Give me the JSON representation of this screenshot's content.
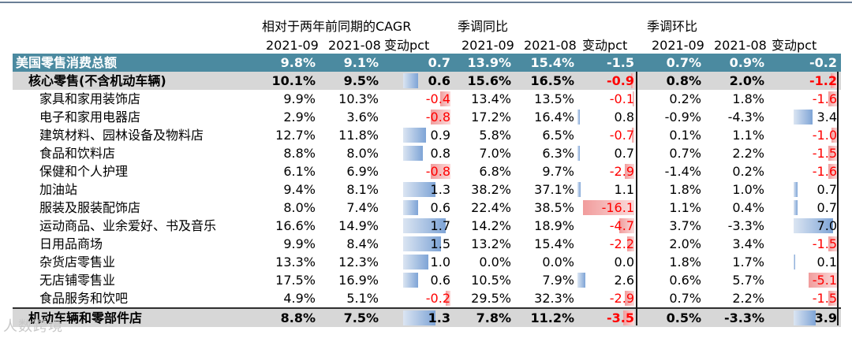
{
  "header": {
    "groups": [
      "相对于两年前同期的CAGR",
      "季调同比",
      "季调环比"
    ],
    "subheaders": [
      "2021-09",
      "2021-08",
      "变动pct",
      "2021-09",
      "2021-08",
      "变动pct",
      "2021-09",
      "2021-08",
      "变动pct"
    ]
  },
  "rows": [
    {
      "label": "美国零售消费总额",
      "type": "total",
      "values": [
        "9.8%",
        "9.1%",
        "0.7",
        "13.9%",
        "15.4%",
        "-1.5",
        "0.7%",
        "0.9%",
        "-0.2"
      ],
      "changes": [
        0.7,
        -1.5,
        -0.2
      ]
    },
    {
      "label": "核心零售(不含机动车辆)",
      "type": "band",
      "values": [
        "10.1%",
        "9.5%",
        "0.6",
        "15.6%",
        "16.5%",
        "-0.9",
        "0.8%",
        "2.0%",
        "-1.2"
      ],
      "changes": [
        0.6,
        -0.9,
        -1.2
      ]
    },
    {
      "label": "家具和家用装饰店",
      "type": "item",
      "values": [
        "9.9%",
        "10.3%",
        "-0.4",
        "13.4%",
        "13.5%",
        "-0.1",
        "0.2%",
        "1.8%",
        "-1.6"
      ],
      "changes": [
        -0.4,
        -0.1,
        -1.6
      ]
    },
    {
      "label": "电子和家用电器店",
      "type": "item",
      "values": [
        "2.9%",
        "3.6%",
        "-0.8",
        "17.2%",
        "16.4%",
        "0.8",
        "-0.9%",
        "-4.3%",
        "3.4"
      ],
      "changes": [
        -0.8,
        0.8,
        3.4
      ]
    },
    {
      "label": "建筑材料、园林设备及物料店",
      "type": "item",
      "values": [
        "12.7%",
        "11.8%",
        "0.9",
        "5.8%",
        "6.5%",
        "-0.7",
        "0.1%",
        "1.1%",
        "-1.0"
      ],
      "changes": [
        0.9,
        -0.7,
        -1.0
      ]
    },
    {
      "label": "食品和饮料店",
      "type": "item",
      "values": [
        "8.8%",
        "8.0%",
        "0.8",
        "7.0%",
        "6.3%",
        "0.7",
        "0.7%",
        "2.2%",
        "-1.5"
      ],
      "changes": [
        0.8,
        0.7,
        -1.5
      ]
    },
    {
      "label": "保健和个人护理",
      "type": "item",
      "values": [
        "6.1%",
        "6.9%",
        "-0.8",
        "6.8%",
        "9.7%",
        "-2.9",
        "-1.4%",
        "0.2%",
        "-1.6"
      ],
      "changes": [
        -0.8,
        -2.9,
        -1.6
      ]
    },
    {
      "label": "加油站",
      "type": "item",
      "values": [
        "9.4%",
        "8.1%",
        "1.3",
        "38.2%",
        "37.1%",
        "1.1",
        "1.8%",
        "1.0%",
        "0.7"
      ],
      "changes": [
        1.3,
        1.1,
        0.7
      ]
    },
    {
      "label": "服装及服装配饰店",
      "type": "item",
      "values": [
        "8.0%",
        "7.4%",
        "0.6",
        "22.4%",
        "38.5%",
        "-16.1",
        "1.1%",
        "0.4%",
        "0.7"
      ],
      "changes": [
        0.6,
        -16.1,
        0.7
      ]
    },
    {
      "label": "运动商品、业余爱好、书及音乐",
      "type": "item",
      "values": [
        "16.6%",
        "14.9%",
        "1.7",
        "14.2%",
        "18.9%",
        "-4.7",
        "3.7%",
        "-3.3%",
        "7.0"
      ],
      "changes": [
        1.7,
        -4.7,
        7.0
      ]
    },
    {
      "label": "日用品商场",
      "type": "item",
      "values": [
        "9.9%",
        "8.4%",
        "1.5",
        "13.2%",
        "15.4%",
        "-2.2",
        "2.0%",
        "3.4%",
        "-1.5"
      ],
      "changes": [
        1.5,
        -2.2,
        -1.5
      ]
    },
    {
      "label": "杂货店零售业",
      "type": "item",
      "values": [
        "13.3%",
        "12.3%",
        "1.0",
        "0.0%",
        "0.0%",
        "0.0",
        "1.8%",
        "1.7%",
        "0.1"
      ],
      "changes": [
        1.0,
        0.0,
        0.1
      ]
    },
    {
      "label": "无店铺零售业",
      "type": "item",
      "values": [
        "17.5%",
        "16.9%",
        "0.6",
        "10.5%",
        "7.9%",
        "2.6",
        "0.6%",
        "5.7%",
        "-5.1"
      ],
      "changes": [
        0.6,
        2.6,
        -5.1
      ]
    },
    {
      "label": "食品服务和饮吧",
      "type": "item",
      "values": [
        "4.9%",
        "5.1%",
        "-0.2",
        "29.5%",
        "32.3%",
        "-2.9",
        "0.7%",
        "2.2%",
        "-1.5"
      ],
      "changes": [
        -0.2,
        -2.9,
        -1.5
      ]
    },
    {
      "label": "机动车辆和零部件店",
      "type": "band",
      "values": [
        "8.8%",
        "7.5%",
        "1.3",
        "7.8%",
        "11.2%",
        "-3.5",
        "0.5%",
        "-3.3%",
        "3.9"
      ],
      "changes": [
        1.3,
        -3.5,
        3.9
      ]
    }
  ],
  "watermark": "人数跨境",
  "colors": {
    "total_bg": "#4b8aa0",
    "band_bg": "#d7d7d7",
    "pos_bar": "#7ea4d6",
    "neg_bar": "#f19c9c",
    "neg_text": "#ff0000"
  }
}
